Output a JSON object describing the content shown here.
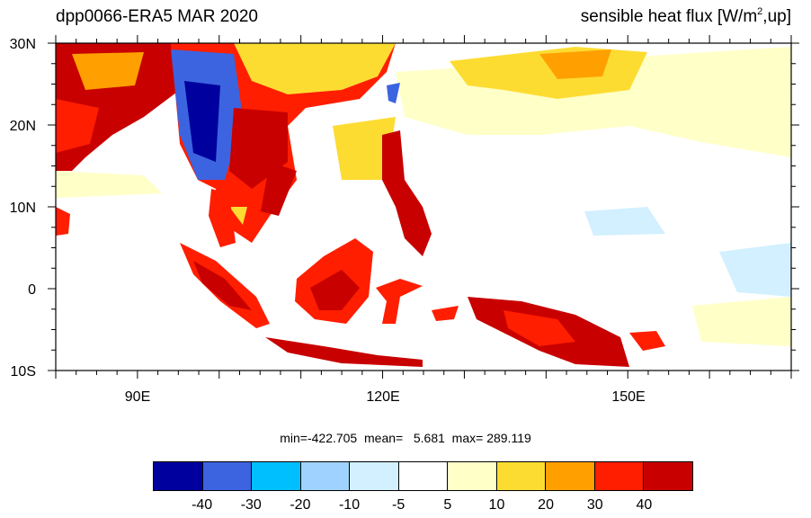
{
  "title_left": "dpp0066-ERA5  MAR 2020",
  "title_right": {
    "prefix": "sensible heat flux [W/m",
    "sup": "2",
    "suffix": ",up]"
  },
  "lat_labels": [
    "30N",
    "20N",
    "10N",
    "0",
    "10S"
  ],
  "lon_labels": [
    "90E",
    "120E",
    "150E"
  ],
  "stats": "min=-422.705  mean=   5.681  max= 289.119",
  "colorbar": {
    "colors": [
      "#00009e",
      "#3c64e0",
      "#00bfff",
      "#a0d2ff",
      "#d2f0ff",
      "#ffffff",
      "#ffffc8",
      "#fddc32",
      "#ffa000",
      "#ff1e00",
      "#c80000"
    ],
    "labels": [
      "-40",
      "-30",
      "-20",
      "-10",
      "-5",
      "5",
      "10",
      "20",
      "30",
      "40"
    ]
  }
}
